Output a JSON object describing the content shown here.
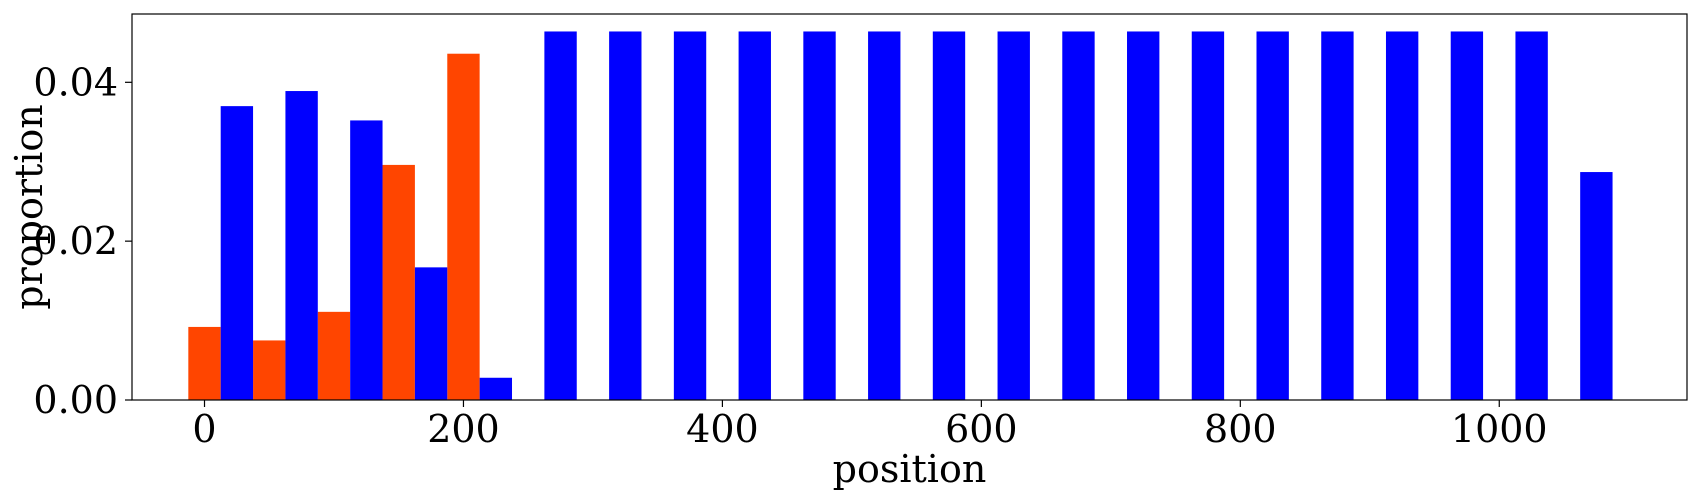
{
  "chart_data": {
    "type": "bar",
    "title": "",
    "xlabel": "position",
    "ylabel": "proportion",
    "xlim": [
      -56,
      1145
    ],
    "ylim": [
      0,
      0.0486
    ],
    "xticks": [
      0,
      200,
      400,
      600,
      800,
      1000
    ],
    "xtick_labels": [
      "0",
      "200",
      "400",
      "600",
      "800",
      "1000"
    ],
    "yticks": [
      0.0,
      0.02,
      0.04
    ],
    "ytick_labels": [
      "0.00",
      "0.02",
      "0.04"
    ],
    "bar_width": 25,
    "grid": false,
    "series": [
      {
        "color": "#ff4500",
        "x": [
          0,
          50,
          100,
          150,
          200
        ],
        "values": [
          0.0092,
          0.0075,
          0.0111,
          0.0296,
          0.0436
        ]
      },
      {
        "color": "#0000ff",
        "x": [
          25,
          75,
          125,
          175,
          225,
          275,
          325,
          375,
          425,
          475,
          525,
          575,
          625,
          675,
          725,
          775,
          825,
          875,
          925,
          975,
          1025,
          1075
        ],
        "values": [
          0.037,
          0.0389,
          0.0352,
          0.0167,
          0.0028,
          0.0464,
          0.0464,
          0.0464,
          0.0464,
          0.0464,
          0.0464,
          0.0464,
          0.0464,
          0.0464,
          0.0464,
          0.0464,
          0.0464,
          0.0464,
          0.0464,
          0.0464,
          0.0464,
          0.0287
        ]
      }
    ]
  }
}
